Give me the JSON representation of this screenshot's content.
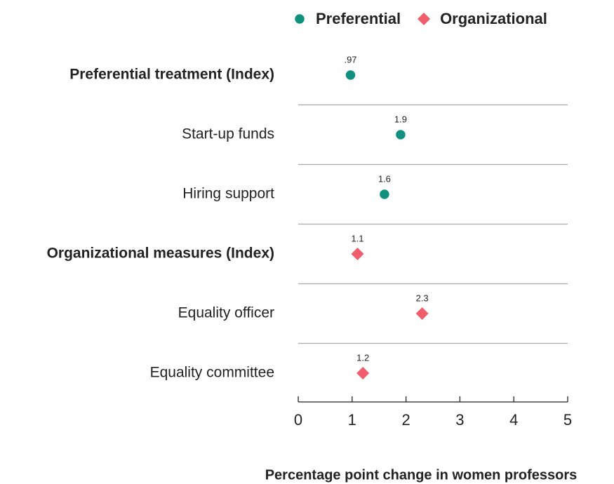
{
  "chart_data": {
    "type": "scatter",
    "categories": [
      "Preferential treatment (Index)",
      "Start-up funds",
      "Hiring support",
      "Organizational measures (Index)",
      "Equality officer",
      "Equality committee"
    ],
    "series": [
      {
        "name": "Preferential",
        "color": "#11907f",
        "marker": "circle",
        "values": [
          0.97,
          1.9,
          1.6,
          null,
          null,
          null
        ],
        "value_labels": [
          ".97",
          "1.9",
          "1.6",
          null,
          null,
          null
        ]
      },
      {
        "name": "Organizational",
        "color": "#f05d6c",
        "marker": "diamond",
        "values": [
          null,
          null,
          null,
          1.1,
          2.3,
          1.2
        ],
        "value_labels": [
          null,
          null,
          null,
          "1.1",
          "2.3",
          "1.2"
        ]
      }
    ],
    "xlim": [
      0,
      5
    ],
    "xticks": [
      0,
      1,
      2,
      3,
      4,
      5
    ],
    "xlabel": "Percentage point change in women professors"
  }
}
